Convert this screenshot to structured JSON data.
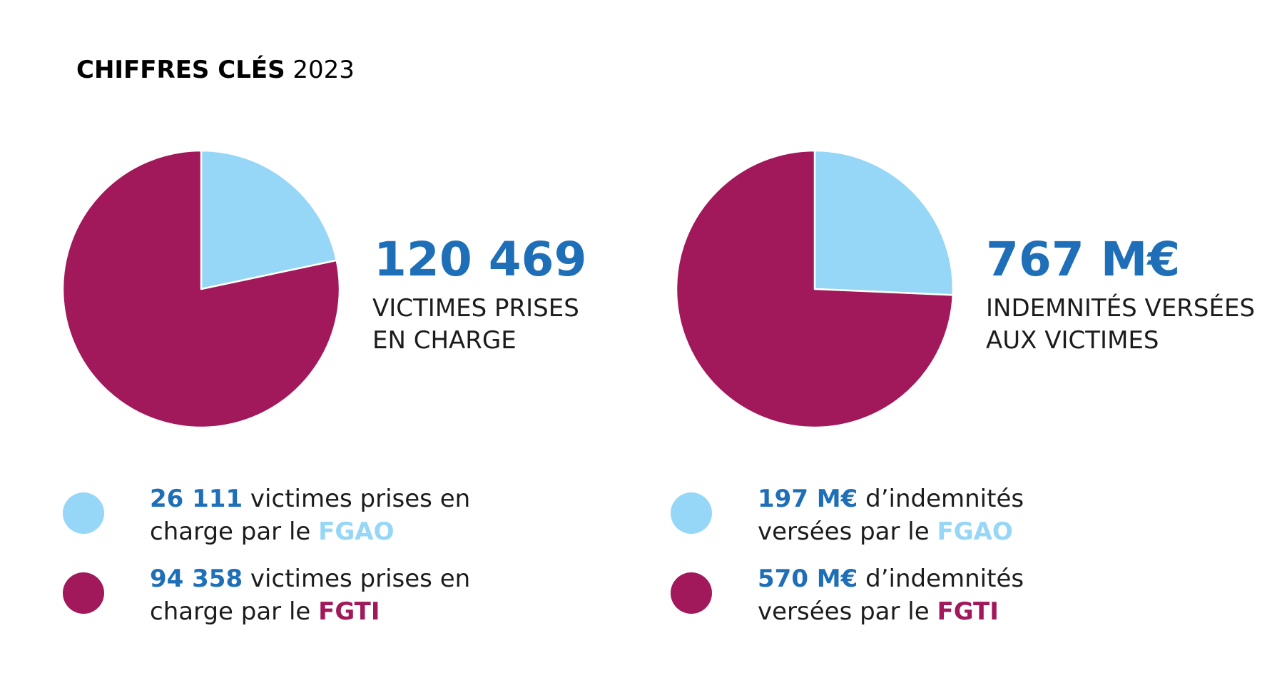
{
  "title": {
    "bold": "CHIFFRES CLÉS",
    "year": "2023"
  },
  "colors": {
    "fgao": "#96d6f6",
    "fgti": "#a1195b",
    "accent": "#1e6fb8",
    "text": "#1c1c1c"
  },
  "chart_data": [
    {
      "type": "pie",
      "total": "120 469",
      "caption_line1": "VICTIMES PRISES",
      "caption_line2": "EN CHARGE",
      "slices": [
        {
          "name": "FGAO",
          "value": 26111,
          "color": "#96d6f6"
        },
        {
          "name": "FGTI",
          "value": 94358,
          "color": "#a1195b"
        }
      ],
      "legend": [
        {
          "value": "26 111",
          "line1_text": " victimes prises en",
          "line2_text": "charge par le ",
          "org": "FGAO"
        },
        {
          "value": "94 358",
          "line1_text": " victimes prises en",
          "line2_text": "charge par le ",
          "org": "FGTI"
        }
      ]
    },
    {
      "type": "pie",
      "total": "767 M€",
      "caption_line1": "INDEMNITÉS VERSÉES",
      "caption_line2": "AUX VICTIMES",
      "slices": [
        {
          "name": "FGAO",
          "value": 197,
          "color": "#96d6f6"
        },
        {
          "name": "FGTI",
          "value": 570,
          "color": "#a1195b"
        }
      ],
      "legend": [
        {
          "value": "197 M€",
          "line1_text": " d’indemnités",
          "line2_text": "versées par le ",
          "org": "FGAO"
        },
        {
          "value": "570 M€",
          "line1_text": " d’indemnités",
          "line2_text": "versées par le ",
          "org": "FGTI"
        }
      ]
    }
  ]
}
